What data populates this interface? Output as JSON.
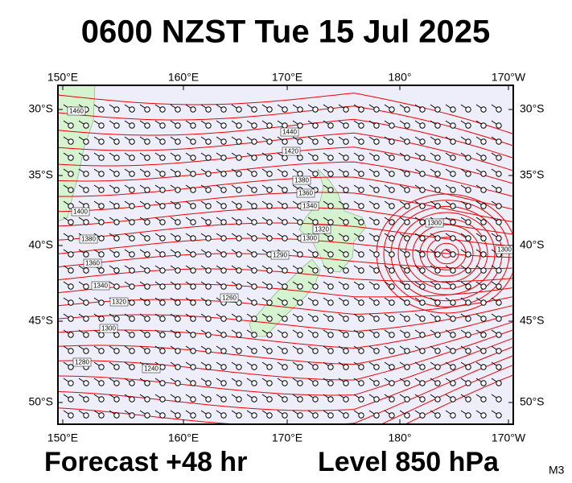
{
  "header": {
    "title": "0600 NZST Tue 15 Jul 2025"
  },
  "map": {
    "lon_labels": [
      "150°E",
      "160°E",
      "170°E",
      "180°",
      "170°W"
    ],
    "lat_labels": [
      "30°S",
      "35°S",
      "40°S",
      "45°S",
      "50°S"
    ],
    "contour_labels": [
      1460,
      1440,
      1420,
      1400,
      1380,
      1380,
      1360,
      1360,
      1340,
      1340,
      1320,
      1320,
      1300,
      1300,
      1300,
      1290,
      1280,
      1260,
      1240,
      1300
    ]
  },
  "footer": {
    "forecast": "Forecast +48 hr",
    "level": "Level 850 hPa",
    "model": "M3"
  }
}
